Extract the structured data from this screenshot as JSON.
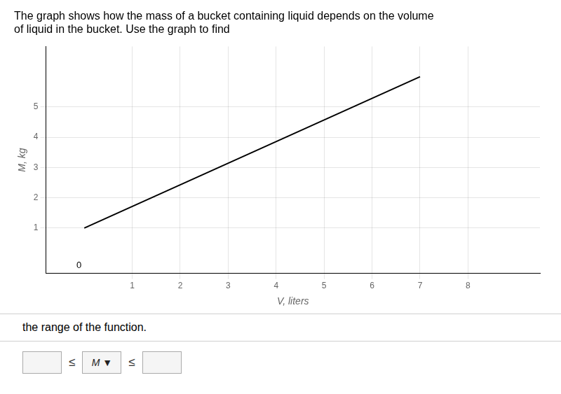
{
  "chart_data": {
    "type": "line",
    "title": "The graph shows how the mass of a bucket containing liquid depends on the volume\nof liquid in the bucket. Use the graph to find",
    "x_label": "V, liters",
    "y_label": "M, kg",
    "x": [
      0,
      7
    ],
    "values": [
      1,
      6
    ],
    "color": "#000000",
    "xlim": [
      -0.8,
      9.5
    ],
    "ylim": [
      -0.5,
      7.0
    ],
    "xticks": [
      1,
      2,
      3,
      4,
      5,
      6,
      7,
      8
    ],
    "yticks": [
      1,
      2,
      3,
      4,
      5
    ],
    "grid": true,
    "annotations": [
      {
        "text": "0",
        "x": 0,
        "y": 0
      },
      {
        "text": "the range of the function."
      },
      {
        "text": "≤"
      },
      {
        "text": "M ▼"
      },
      {
        "text": "≤"
      }
    ]
  }
}
